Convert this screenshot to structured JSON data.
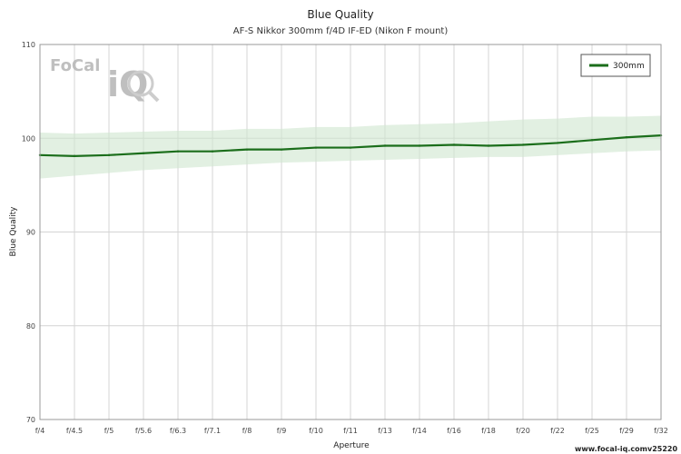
{
  "chart_data": {
    "type": "line",
    "title": "Blue Quality",
    "subtitle": "AF-S Nikkor 300mm f/4D IF-ED (Nikon F mount)",
    "xlabel": "Aperture",
    "ylabel": "Blue Quality",
    "categories": [
      "f/4",
      "f/4.5",
      "f/5",
      "f/5.6",
      "f/6.3",
      "f/7.1",
      "f/8",
      "f/9",
      "f/10",
      "f/11",
      "f/13",
      "f/14",
      "f/16",
      "f/18",
      "f/20",
      "f/22",
      "f/25",
      "f/29",
      "f/32"
    ],
    "ylim": [
      70,
      110
    ],
    "yticks": [
      70,
      80,
      90,
      100,
      110
    ],
    "grid": true,
    "legend_position": "top-right",
    "series": [
      {
        "name": "300mm",
        "color": "#1b6e1b",
        "values": [
          98.2,
          98.1,
          98.2,
          98.4,
          98.6,
          98.6,
          98.8,
          98.8,
          99.0,
          99.0,
          99.2,
          99.2,
          99.3,
          99.2,
          99.3,
          99.5,
          99.8,
          100.1,
          100.3
        ],
        "band_upper": [
          100.6,
          100.5,
          100.6,
          100.7,
          100.8,
          100.8,
          101.0,
          101.0,
          101.2,
          101.2,
          101.4,
          101.5,
          101.6,
          101.8,
          102.0,
          102.1,
          102.3,
          102.3,
          102.4
        ],
        "band_lower": [
          95.7,
          96.0,
          96.3,
          96.6,
          96.8,
          97.0,
          97.2,
          97.4,
          97.5,
          97.6,
          97.7,
          97.8,
          97.9,
          98.0,
          98.0,
          98.2,
          98.4,
          98.6,
          98.7
        ],
        "band_color": "#cfe6cf"
      }
    ]
  },
  "logo": {
    "text_left": "FoCal",
    "text_right": "iQ"
  },
  "footer": {
    "site": "www.focal-iq.com",
    "version": "v25220"
  }
}
